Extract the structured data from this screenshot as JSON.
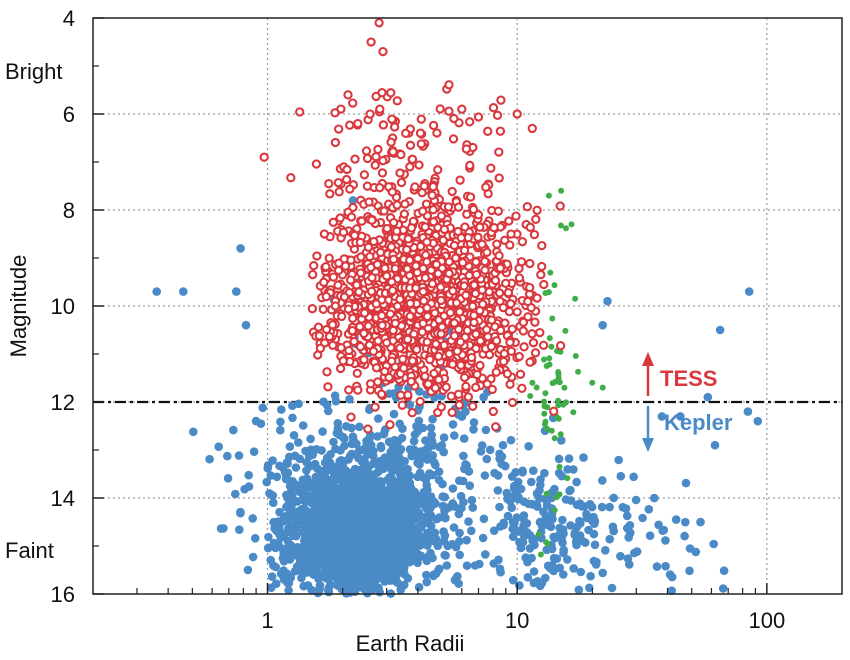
{
  "chart_data": {
    "type": "scatter",
    "title": "",
    "xlabel": "Earth Radii",
    "ylabel": "Magnitude",
    "x_scale": "log",
    "xlim": [
      0.2,
      200
    ],
    "ylim": [
      16,
      4
    ],
    "y_inverted": true,
    "x_ticks": [
      "1",
      "10",
      "100"
    ],
    "y_ticks": [
      "4",
      "6",
      "8",
      "10",
      "12",
      "14",
      "16"
    ],
    "grid": "dotted",
    "bright_label": "Bright",
    "faint_label": "Faint",
    "threshold_magnitude": 12,
    "annotations": [
      {
        "text": "TESS",
        "color": "#d9393e",
        "direction": "up"
      },
      {
        "text": "Kepler",
        "color": "#4a8ac7",
        "direction": "down"
      }
    ],
    "colors": {
      "tess": "#d9393e",
      "kepler": "#4a8ac7",
      "other": "#3fae49"
    },
    "series": [
      {
        "name": "TESS",
        "marker": "open-circle",
        "color": "#d9393e",
        "clusters": [
          {
            "count": 1500,
            "x_center": 4.2,
            "x_spread_log10": 0.2,
            "y_center": 9.8,
            "y_spread": 1.0,
            "x_range": [
              1.5,
              15.5
            ],
            "y_range": [
              7.3,
              13.0
            ]
          },
          {
            "count": 110,
            "x_center": 4.0,
            "x_spread_log10": 0.22,
            "y_center": 7.0,
            "y_spread": 0.7,
            "x_range": [
              1.0,
              13.0
            ],
            "y_range": [
              4.6,
              8.5
            ]
          }
        ],
        "points": [
          [
            2.8,
            4.1
          ],
          [
            2.6,
            4.5
          ],
          [
            2.9,
            4.7
          ],
          [
            2.1,
            5.6
          ],
          [
            6.0,
            5.9
          ],
          [
            10.0,
            6.0
          ],
          [
            0.97,
            6.9
          ],
          [
            2.3,
            6.2
          ],
          [
            4.1,
            6.4
          ],
          [
            11.5,
            6.3
          ]
        ]
      },
      {
        "name": "Kepler",
        "marker": "filled-circle",
        "color": "#4a8ac7",
        "clusters": [
          {
            "count": 1500,
            "x_center": 2.2,
            "x_spread_log10": 0.14,
            "y_center": 14.7,
            "y_spread": 0.65,
            "x_range": [
              1.0,
              7.0
            ],
            "y_range": [
              12.2,
              16.0
            ]
          },
          {
            "count": 500,
            "x_center": 2.8,
            "x_spread_log10": 0.3,
            "y_center": 13.7,
            "y_spread": 1.0,
            "x_range": [
              0.5,
              20.0
            ],
            "y_range": [
              11.4,
              16.0
            ]
          },
          {
            "count": 160,
            "x_center": 13.0,
            "x_spread_log10": 0.14,
            "y_center": 14.6,
            "y_spread": 1.0,
            "x_range": [
              5.0,
              30.0
            ],
            "y_range": [
              12.0,
              16.0
            ]
          },
          {
            "count": 45,
            "x_center": 35.0,
            "x_spread_log10": 0.2,
            "y_center": 14.8,
            "y_spread": 0.8,
            "x_range": [
              18.0,
              70.0
            ],
            "y_range": [
              13.4,
              16.0
            ]
          },
          {
            "count": 40,
            "x_center": 3.5,
            "x_spread_log10": 0.25,
            "y_center": 10.3,
            "y_spread": 0.8,
            "x_range": [
              1.2,
              14.0
            ],
            "y_range": [
              8.6,
              12.0
            ]
          }
        ],
        "points": [
          [
            0.36,
            9.7
          ],
          [
            0.46,
            9.7
          ],
          [
            0.75,
            9.7
          ],
          [
            0.78,
            8.8
          ],
          [
            0.82,
            10.4
          ],
          [
            2.2,
            7.8
          ],
          [
            23.0,
            9.9
          ],
          [
            22.0,
            10.4
          ],
          [
            65.0,
            10.5
          ],
          [
            85.0,
            9.7
          ],
          [
            58.0,
            11.9
          ],
          [
            62.0,
            12.9
          ],
          [
            84.0,
            12.2
          ],
          [
            92.0,
            12.4
          ],
          [
            45.0,
            12.3
          ],
          [
            38.0,
            12.3
          ]
        ]
      },
      {
        "name": "",
        "marker": "small-filled-circle",
        "color": "#3fae49",
        "clusters": [
          {
            "count": 60,
            "x_center": 14.0,
            "x_spread_log10": 0.05,
            "y_center": 11.8,
            "y_spread": 1.7,
            "x_range": [
              11.0,
              20.0
            ],
            "y_range": [
              7.6,
              15.8
            ]
          }
        ],
        "points": [
          [
            13.4,
            7.7
          ],
          [
            15.0,
            7.6
          ],
          [
            16.5,
            8.3
          ],
          [
            22.0,
            11.7
          ],
          [
            20.0,
            11.6
          ]
        ]
      }
    ]
  }
}
